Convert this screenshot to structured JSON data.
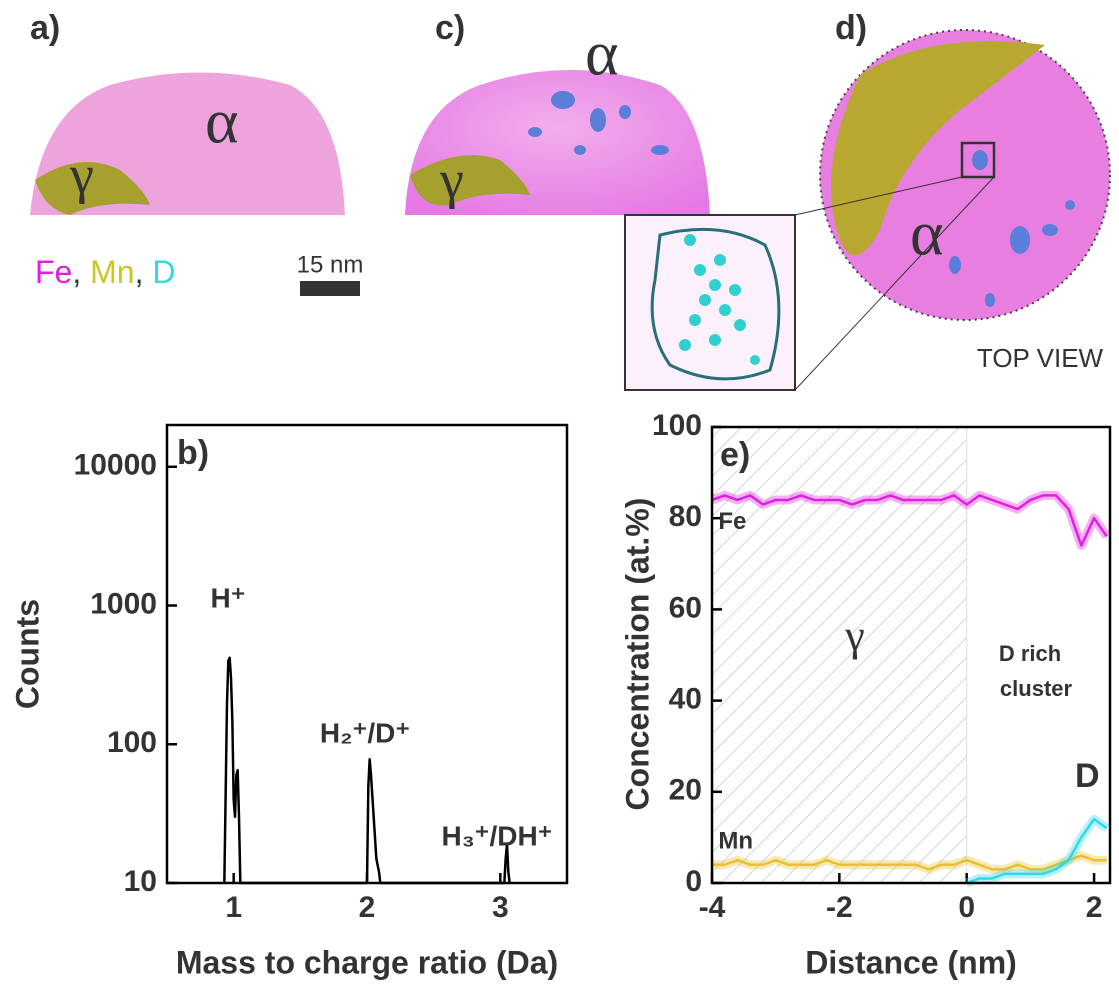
{
  "chart_data": [
    {
      "type": "line",
      "label": "b)",
      "xlabel": "Mass to charge ratio (Da)",
      "ylabel": "Counts",
      "ylog": true,
      "xlim": [
        0.5,
        3.5
      ],
      "xticks": [
        1,
        2,
        3
      ],
      "ylim": [
        10,
        20000
      ],
      "yticks": [
        10,
        100,
        1000,
        10000
      ],
      "x": [
        0.93,
        0.95,
        0.96,
        0.97,
        0.98,
        0.99,
        1.0,
        1.01,
        1.02,
        1.03,
        1.04,
        1.05,
        2.0,
        2.01,
        2.02,
        2.03,
        2.05,
        2.07,
        2.09,
        2.1,
        3.03,
        3.04,
        3.05,
        3.06,
        3.07
      ],
      "series": [
        {
          "color": "#000000",
          "values": [
            10,
            200,
            400,
            420,
            300,
            150,
            40,
            30,
            60,
            65,
            30,
            10,
            10,
            50,
            78,
            60,
            30,
            15,
            12,
            10,
            10,
            15,
            19,
            12,
            10
          ]
        }
      ],
      "annotations": [
        "H⁺",
        "H₂⁺/D⁺",
        "H₃⁺/DH⁺"
      ]
    },
    {
      "type": "line",
      "label": "e)",
      "xlabel": "Distance (nm)",
      "ylabel": "Concentration (at.%)",
      "ylog": false,
      "xlim": [
        -4,
        2.25
      ],
      "xticks": [
        -4,
        -2,
        0,
        2
      ],
      "ylim": [
        0,
        100
      ],
      "yticks": [
        0,
        20,
        40,
        60,
        80,
        100
      ],
      "x": [
        -4,
        -3.8,
        -3.6,
        -3.4,
        -3.2,
        -3,
        -2.8,
        -2.6,
        -2.4,
        -2.2,
        -2,
        -1.8,
        -1.6,
        -1.4,
        -1.2,
        -1,
        -0.8,
        -0.6,
        -0.4,
        -0.2,
        0,
        0.2,
        0.4,
        0.6,
        0.8,
        1,
        1.2,
        1.4,
        1.6,
        1.8,
        2,
        2.2
      ],
      "series": [
        {
          "name": "Fe",
          "color": "#e020e0",
          "values": [
            84,
            85,
            84,
            85,
            83,
            84,
            84,
            85,
            84,
            84,
            84,
            83,
            84,
            84,
            85,
            84,
            84,
            84,
            84,
            85,
            83,
            85,
            84,
            83,
            82,
            84,
            85,
            85,
            82,
            74,
            80,
            76
          ]
        },
        {
          "name": "Mn",
          "color": "#e8c030",
          "values": [
            4,
            4,
            5,
            4,
            4,
            5,
            4,
            4,
            4,
            5,
            4,
            4,
            4,
            4,
            4,
            4,
            4,
            3,
            4,
            4,
            5,
            4,
            3,
            3,
            4,
            3,
            3,
            4,
            5,
            6,
            5,
            5
          ]
        },
        {
          "name": "D",
          "color": "#30d8e8",
          "values": [
            null,
            null,
            null,
            null,
            null,
            null,
            null,
            null,
            null,
            null,
            null,
            null,
            null,
            null,
            null,
            null,
            null,
            null,
            null,
            null,
            0,
            1,
            1,
            2,
            2,
            2,
            2,
            3,
            5,
            10,
            14,
            12
          ]
        }
      ],
      "annotations": [
        "γ",
        "D rich",
        "cluster"
      ]
    }
  ],
  "panels": {
    "a": {
      "label": "a)",
      "alpha": "α",
      "gamma": "γ"
    },
    "c": {
      "label": "c)",
      "alpha": "α",
      "gamma": "γ"
    },
    "d": {
      "label": "d)",
      "alpha": "α",
      "view": "TOP VIEW"
    },
    "legend": [
      {
        "text": "Fe",
        "color": "#e020e0"
      },
      {
        "text": ", ",
        "color": "#333333"
      },
      {
        "text": "Mn",
        "color": "#c8c820"
      },
      {
        "text": ", ",
        "color": "#333333"
      },
      {
        "text": "D",
        "color": "#30d8e8"
      }
    ],
    "scale_bar": "15 nm"
  }
}
